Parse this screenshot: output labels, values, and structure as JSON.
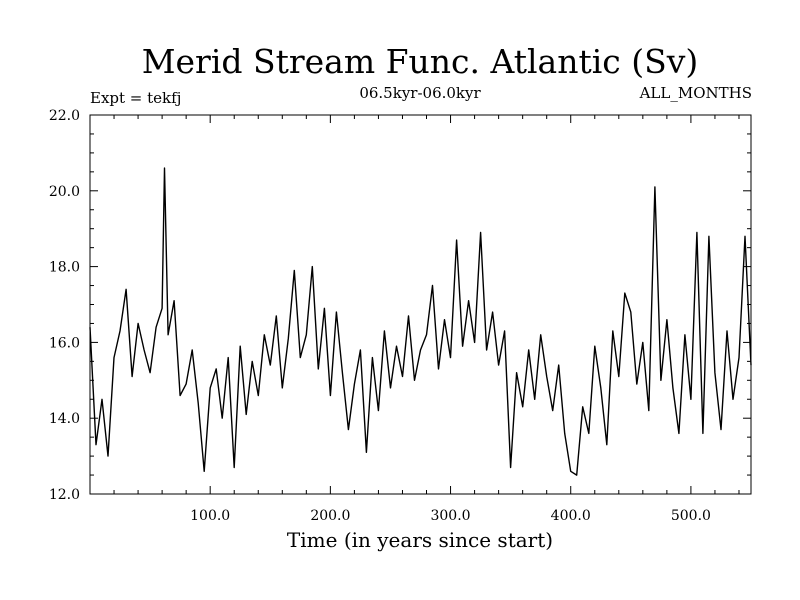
{
  "chart_data": {
    "type": "line",
    "title": "Merid Stream Func. Atlantic (Sv)",
    "subtitle": "06.5kyr-06.0kyr",
    "left_label": "Expt = tekfj",
    "right_label": "ALL_MONTHS",
    "xlabel": "Time (in years since start)",
    "ylabel": "",
    "xlim": [
      0,
      550
    ],
    "ylim": [
      12,
      22
    ],
    "x_ticks": [
      100,
      200,
      300,
      400,
      500
    ],
    "x_tick_labels": [
      "100.0",
      "200.0",
      "300.0",
      "400.0",
      "500.0"
    ],
    "y_ticks": [
      12,
      14,
      16,
      18,
      20,
      22
    ],
    "y_tick_labels": [
      "12.0",
      "14.0",
      "16.0",
      "18.0",
      "20.0",
      "22.0"
    ],
    "series": [
      {
        "name": "Merid Stream Func. Atlantic",
        "x": [
          0,
          5,
          10,
          15,
          20,
          25,
          30,
          35,
          40,
          45,
          50,
          55,
          60,
          62,
          65,
          70,
          75,
          80,
          85,
          90,
          95,
          100,
          105,
          110,
          115,
          120,
          125,
          130,
          135,
          140,
          145,
          150,
          155,
          160,
          165,
          170,
          175,
          180,
          185,
          190,
          195,
          200,
          205,
          210,
          215,
          220,
          225,
          230,
          235,
          240,
          245,
          250,
          255,
          260,
          265,
          270,
          275,
          280,
          285,
          290,
          295,
          300,
          305,
          310,
          315,
          320,
          325,
          330,
          335,
          340,
          345,
          350,
          355,
          360,
          365,
          370,
          375,
          380,
          385,
          390,
          395,
          400,
          405,
          410,
          415,
          420,
          425,
          430,
          435,
          440,
          445,
          450,
          455,
          460,
          465,
          470,
          475,
          480,
          485,
          490,
          495,
          500,
          505,
          510,
          515,
          520,
          525,
          530,
          535,
          540,
          545,
          550
        ],
        "values": [
          16.4,
          13.3,
          14.5,
          13.0,
          15.6,
          16.3,
          17.4,
          15.1,
          16.5,
          15.8,
          15.2,
          16.4,
          16.9,
          20.6,
          16.2,
          17.1,
          14.6,
          14.9,
          15.8,
          14.4,
          12.6,
          14.8,
          15.3,
          14.0,
          15.6,
          12.7,
          15.9,
          14.1,
          15.5,
          14.6,
          16.2,
          15.4,
          16.7,
          14.8,
          16.1,
          17.9,
          15.6,
          16.2,
          18.0,
          15.3,
          16.9,
          14.6,
          16.8,
          15.2,
          13.7,
          14.9,
          15.8,
          13.1,
          15.6,
          14.2,
          16.3,
          14.8,
          15.9,
          15.1,
          16.7,
          15.0,
          15.8,
          16.2,
          17.5,
          15.3,
          16.6,
          15.6,
          18.7,
          15.9,
          17.1,
          16.0,
          18.9,
          15.8,
          16.8,
          15.4,
          16.3,
          12.7,
          15.2,
          14.3,
          15.8,
          14.5,
          16.2,
          15.1,
          14.2,
          15.4,
          13.6,
          12.6,
          12.5,
          14.3,
          13.6,
          15.9,
          14.8,
          13.3,
          16.3,
          15.1,
          17.3,
          16.8,
          14.9,
          16.0,
          14.2,
          20.1,
          15.0,
          16.6,
          14.8,
          13.6,
          16.2,
          14.5,
          18.9,
          13.6,
          18.8,
          15.2,
          13.7,
          16.3,
          14.5,
          15.6,
          18.8,
          15.4
        ]
      }
    ]
  }
}
